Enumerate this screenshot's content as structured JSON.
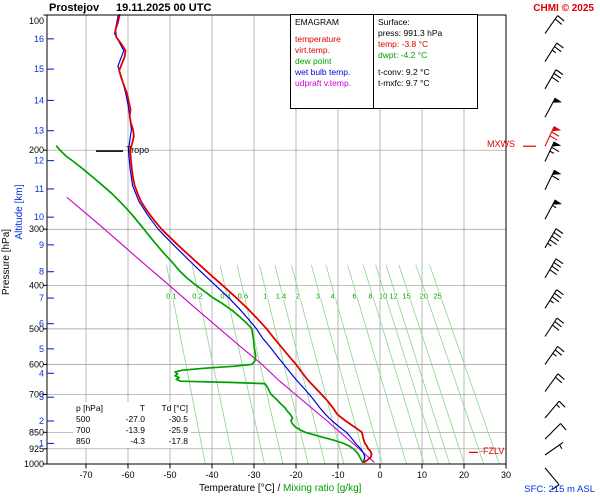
{
  "header": {
    "station": "Prostejov",
    "datetime": "19.11.2025 00 UTC",
    "copyright": "CHMI © 2025"
  },
  "legend": {
    "title": "EMAGRAM",
    "items": [
      {
        "label": "temperature",
        "color": "#e00000"
      },
      {
        "label": "virt.temp.",
        "color": "#e00000"
      },
      {
        "label": "dew point",
        "color": "#00a000"
      },
      {
        "label": "wet bulb temp.",
        "color": "#0000e0"
      },
      {
        "label": "udpraft v.temp.",
        "color": "#cc00cc"
      }
    ]
  },
  "surface": {
    "title": "Surface:",
    "rows": [
      {
        "label": "press:",
        "value": "991.3 hPa",
        "color": "#000000",
        "gap_before": false
      },
      {
        "label": "temp:",
        "value": "-3.8 °C",
        "color": "#e00000",
        "gap_before": false
      },
      {
        "label": "dwpt:",
        "value": "-4.2 °C",
        "color": "#00a000",
        "gap_before": false
      },
      {
        "label": "t-conv:",
        "value": "9.2 °C",
        "color": "#000000",
        "gap_before": true
      },
      {
        "label": "t-mxfc:",
        "value": "9.7 °C",
        "color": "#000000",
        "gap_before": false
      }
    ]
  },
  "axes": {
    "pressure_label": "Pressure [hPa]",
    "altitude_label": "Altitude [km]",
    "temp_label": "Temperature [°C]",
    "sep": "/",
    "mixing_label": "Mixing ratio [g/kg]"
  },
  "annotations": {
    "tropo": "Tropo",
    "mxws": "MXWS",
    "fzlv": "-FZLV",
    "sfc": "SFC: 215 m ASL"
  },
  "table": {
    "headers": [
      "p [hPa]",
      "T",
      "Td [°C]"
    ],
    "rows": [
      [
        "500",
        "-27.0",
        "-30.5"
      ],
      [
        "700",
        "-13.9",
        "-25.9"
      ],
      [
        "850",
        "-4.3",
        "-17.8"
      ]
    ]
  },
  "chart_data": {
    "type": "line",
    "title": "EMAGRAM sounding, Prostejov, 19.11.2025 00 UTC",
    "x_axis": {
      "label": "Temperature [°C]",
      "ticks": [
        -70,
        -60,
        -50,
        -40,
        -30,
        -20,
        -10,
        0,
        10,
        20,
        30
      ],
      "range": [
        -79,
        30
      ]
    },
    "y_axis": {
      "label": "Pressure [hPa]",
      "scale": "log",
      "range": [
        100,
        1000
      ],
      "ticks": [
        100,
        200,
        300,
        400,
        500,
        600,
        700,
        850,
        925,
        1000
      ],
      "grid": [
        200,
        300,
        400,
        500,
        600,
        700,
        850,
        925
      ]
    },
    "altitude_axis": {
      "label": "Altitude [km]",
      "ticks": [
        {
          "km": 1,
          "p": 900
        },
        {
          "km": 2,
          "p": 802
        },
        {
          "km": 3,
          "p": 710
        },
        {
          "km": 4,
          "p": 628
        },
        {
          "km": 5,
          "p": 554
        },
        {
          "km": 6,
          "p": 487
        },
        {
          "km": 7,
          "p": 427
        },
        {
          "km": 8,
          "p": 373
        },
        {
          "km": 9,
          "p": 325
        },
        {
          "km": 10,
          "p": 282
        },
        {
          "km": 11,
          "p": 244
        },
        {
          "km": 12,
          "p": 211
        },
        {
          "km": 13,
          "p": 181
        },
        {
          "km": 14,
          "p": 155
        },
        {
          "km": 15,
          "p": 132
        },
        {
          "km": 16,
          "p": 113
        }
      ]
    },
    "series": [
      {
        "name": "udpraft v.temp.",
        "color": "#cc00cc",
        "width": 1.1,
        "points": [
          [
            991,
            -1.4
          ],
          [
            950,
            -3.6
          ],
          [
            900,
            -6.4
          ],
          [
            850,
            -9.5
          ],
          [
            800,
            -12.7
          ],
          [
            750,
            -16.3
          ],
          [
            700,
            -20.1
          ],
          [
            650,
            -24.2
          ],
          [
            600,
            -28.1
          ],
          [
            550,
            -33.0
          ],
          [
            500,
            -38.2
          ],
          [
            450,
            -43.9
          ],
          [
            400,
            -50.2
          ],
          [
            350,
            -57.4
          ],
          [
            300,
            -65.6
          ],
          [
            275,
            -70.3
          ],
          [
            255,
            -74.5
          ]
        ]
      },
      {
        "name": "wet bulb temp.",
        "color": "#0000e0",
        "width": 1.2,
        "points": [
          [
            991,
            -4.0
          ],
          [
            965,
            -3.6
          ],
          [
            950,
            -3.8
          ],
          [
            925,
            -4.6
          ],
          [
            900,
            -5.8
          ],
          [
            875,
            -6.8
          ],
          [
            850,
            -8.0
          ],
          [
            825,
            -9.8
          ],
          [
            800,
            -11.5
          ],
          [
            775,
            -13.0
          ],
          [
            750,
            -14.3
          ],
          [
            725,
            -15.5
          ],
          [
            700,
            -16.8
          ],
          [
            675,
            -18.3
          ],
          [
            650,
            -19.9
          ],
          [
            625,
            -21.4
          ],
          [
            600,
            -22.9
          ],
          [
            575,
            -24.5
          ],
          [
            550,
            -26.1
          ],
          [
            525,
            -27.9
          ],
          [
            500,
            -29.4
          ],
          [
            475,
            -31.4
          ],
          [
            450,
            -33.6
          ],
          [
            425,
            -36.2
          ],
          [
            400,
            -39.2
          ],
          [
            375,
            -42.4
          ],
          [
            350,
            -45.7
          ],
          [
            325,
            -49.2
          ],
          [
            300,
            -52.8
          ],
          [
            280,
            -55.2
          ],
          [
            260,
            -57.4
          ],
          [
            240,
            -58.9
          ],
          [
            220,
            -59.5
          ],
          [
            200,
            -59.9
          ],
          [
            180,
            -59.2
          ],
          [
            160,
            -59.9
          ],
          [
            150,
            -60.5
          ],
          [
            140,
            -61.3
          ],
          [
            130,
            -62.4
          ],
          [
            120,
            -61.0
          ],
          [
            110,
            -63.2
          ],
          [
            100,
            -62.3
          ]
        ]
      },
      {
        "name": "dew point",
        "color": "#00a000",
        "width": 1.7,
        "points": [
          [
            991,
            -4.2
          ],
          [
            980,
            -4.4
          ],
          [
            965,
            -4.8
          ],
          [
            950,
            -5.2
          ],
          [
            935,
            -5.8
          ],
          [
            925,
            -6.3
          ],
          [
            910,
            -7.5
          ],
          [
            900,
            -8.6
          ],
          [
            885,
            -11.0
          ],
          [
            870,
            -14.0
          ],
          [
            850,
            -17.8
          ],
          [
            840,
            -19.0
          ],
          [
            825,
            -20.3
          ],
          [
            810,
            -21.0
          ],
          [
            800,
            -21.2
          ],
          [
            790,
            -20.8
          ],
          [
            775,
            -21.4
          ],
          [
            760,
            -22.2
          ],
          [
            750,
            -22.6
          ],
          [
            735,
            -23.6
          ],
          [
            720,
            -24.5
          ],
          [
            710,
            -25.2
          ],
          [
            700,
            -25.9
          ],
          [
            690,
            -26.3
          ],
          [
            680,
            -26.6
          ],
          [
            670,
            -27.0
          ],
          [
            662,
            -27.4
          ],
          [
            658,
            -36.0
          ],
          [
            654,
            -47.5
          ],
          [
            648,
            -48.5
          ],
          [
            642,
            -47.8
          ],
          [
            636,
            -48.8
          ],
          [
            630,
            -48.2
          ],
          [
            624,
            -48.8
          ],
          [
            618,
            -47.0
          ],
          [
            612,
            -42.0
          ],
          [
            606,
            -35.0
          ],
          [
            600,
            -30.5
          ],
          [
            590,
            -29.8
          ],
          [
            575,
            -29.6
          ],
          [
            560,
            -29.8
          ],
          [
            545,
            -30.0
          ],
          [
            530,
            -30.1
          ],
          [
            515,
            -30.3
          ],
          [
            500,
            -30.5
          ],
          [
            485,
            -31.8
          ],
          [
            470,
            -33.4
          ],
          [
            455,
            -35.2
          ],
          [
            440,
            -37.4
          ],
          [
            425,
            -40.0
          ],
          [
            410,
            -42.2
          ],
          [
            400,
            -43.8
          ],
          [
            385,
            -46.0
          ],
          [
            370,
            -47.9
          ],
          [
            355,
            -49.5
          ],
          [
            340,
            -51.4
          ],
          [
            325,
            -53.2
          ],
          [
            310,
            -55.0
          ],
          [
            300,
            -56.2
          ],
          [
            290,
            -57.5
          ],
          [
            280,
            -58.8
          ],
          [
            270,
            -60.3
          ],
          [
            260,
            -62.0
          ],
          [
            250,
            -63.8
          ],
          [
            240,
            -66.0
          ],
          [
            230,
            -68.3
          ],
          [
            220,
            -70.8
          ],
          [
            212,
            -73.0
          ],
          [
            206,
            -74.8
          ],
          [
            200,
            -76.2
          ],
          [
            196,
            -77.0
          ]
        ]
      },
      {
        "name": "temperature",
        "color": "#e00000",
        "width": 1.8,
        "points": [
          [
            991,
            -3.8
          ],
          [
            980,
            -3.0
          ],
          [
            965,
            -2.2
          ],
          [
            950,
            -2.0
          ],
          [
            935,
            -2.3
          ],
          [
            925,
            -2.8
          ],
          [
            910,
            -3.2
          ],
          [
            900,
            -3.6
          ],
          [
            875,
            -4.0
          ],
          [
            850,
            -4.3
          ],
          [
            830,
            -5.8
          ],
          [
            800,
            -8.3
          ],
          [
            775,
            -10.2
          ],
          [
            750,
            -11.2
          ],
          [
            725,
            -12.4
          ],
          [
            700,
            -13.9
          ],
          [
            675,
            -15.5
          ],
          [
            650,
            -17.2
          ],
          [
            625,
            -18.6
          ],
          [
            600,
            -20.0
          ],
          [
            575,
            -21.7
          ],
          [
            550,
            -23.4
          ],
          [
            525,
            -25.2
          ],
          [
            500,
            -27.0
          ],
          [
            475,
            -29.2
          ],
          [
            450,
            -31.6
          ],
          [
            425,
            -34.4
          ],
          [
            400,
            -37.5
          ],
          [
            375,
            -40.9
          ],
          [
            350,
            -44.4
          ],
          [
            325,
            -48.2
          ],
          [
            300,
            -52.0
          ],
          [
            290,
            -53.3
          ],
          [
            280,
            -54.6
          ],
          [
            270,
            -55.8
          ],
          [
            260,
            -56.9
          ],
          [
            250,
            -57.7
          ],
          [
            240,
            -58.4
          ],
          [
            230,
            -58.8
          ],
          [
            220,
            -59.1
          ],
          [
            210,
            -59.3
          ],
          [
            200,
            -59.5
          ],
          [
            193,
            -59.0
          ],
          [
            186,
            -58.6
          ],
          [
            180,
            -58.8
          ],
          [
            174,
            -59.3
          ],
          [
            168,
            -59.6
          ],
          [
            162,
            -59.4
          ],
          [
            156,
            -59.8
          ],
          [
            150,
            -60.2
          ],
          [
            144,
            -60.9
          ],
          [
            138,
            -61.6
          ],
          [
            133,
            -62.1
          ],
          [
            128,
            -61.4
          ],
          [
            124,
            -60.8
          ],
          [
            120,
            -60.6
          ],
          [
            116,
            -61.6
          ],
          [
            112,
            -62.8
          ],
          [
            108,
            -63.0
          ],
          [
            104,
            -62.4
          ],
          [
            100,
            -62.0
          ]
        ]
      }
    ],
    "mixing_ratio_lines": {
      "color": "#8fd48f",
      "label_color": "#00a000",
      "values": [
        {
          "r": "0.1",
          "t400": -49.9,
          "t1000": -41.6
        },
        {
          "r": "0.2",
          "t400": -43.7,
          "t1000": -34.8
        },
        {
          "r": "0.4",
          "t400": -37.0,
          "t1000": -27.5
        },
        {
          "r": "0.6",
          "t400": -32.9,
          "t1000": -23.1
        },
        {
          "r": "1",
          "t400": -27.5,
          "t1000": -17.1
        },
        {
          "r": "1.4",
          "t400": -23.8,
          "t1000": -13.1
        },
        {
          "r": "2",
          "t400": -19.8,
          "t1000": -8.6
        },
        {
          "r": "3",
          "t400": -15.0,
          "t1000": -3.3
        },
        {
          "r": "4",
          "t400": -11.5,
          "t1000": 0.6
        },
        {
          "r": "6",
          "t400": -6.3,
          "t1000": 6.3
        },
        {
          "r": "8",
          "t400": -2.5,
          "t1000": 10.5
        },
        {
          "r": "10",
          "t400": 0.5,
          "t1000": 13.9
        },
        {
          "r": "12",
          "t400": 3.0,
          "t1000": 16.6
        },
        {
          "r": "15",
          "t400": 6.1,
          "t1000": 20.1
        },
        {
          "r": "20",
          "t400": 10.2,
          "t1000": 24.7
        },
        {
          "r": "25",
          "t400": 13.5,
          "t1000": 28.4
        }
      ]
    },
    "wind_barbs": {
      "x": 545,
      "color": "#000000",
      "levels": [
        {
          "p": 110,
          "angle": 35,
          "flags": 0,
          "fulls": 2,
          "halves": 0
        },
        {
          "p": 127,
          "angle": 32,
          "flags": 0,
          "fulls": 2,
          "halves": 1
        },
        {
          "p": 146,
          "angle": 30,
          "flags": 0,
          "fulls": 3,
          "halves": 0
        },
        {
          "p": 169,
          "angle": 28,
          "flags": 1,
          "fulls": 0,
          "halves": 0
        },
        {
          "p": 196,
          "angle": 25,
          "flags": 1,
          "fulls": 2,
          "halves": 0,
          "color": "#e00000"
        },
        {
          "p": 212,
          "angle": 25,
          "flags": 1,
          "fulls": 1,
          "halves": 1
        },
        {
          "p": 245,
          "angle": 26,
          "flags": 1,
          "fulls": 1,
          "halves": 0
        },
        {
          "p": 285,
          "angle": 28,
          "flags": 1,
          "fulls": 0,
          "halves": 1
        },
        {
          "p": 330,
          "angle": 30,
          "flags": 0,
          "fulls": 4,
          "halves": 1
        },
        {
          "p": 385,
          "angle": 30,
          "flags": 0,
          "fulls": 4,
          "halves": 0
        },
        {
          "p": 450,
          "angle": 32,
          "flags": 0,
          "fulls": 3,
          "halves": 1
        },
        {
          "p": 520,
          "angle": 33,
          "flags": 0,
          "fulls": 3,
          "halves": 0
        },
        {
          "p": 600,
          "angle": 35,
          "flags": 0,
          "fulls": 2,
          "halves": 1
        },
        {
          "p": 690,
          "angle": 36,
          "flags": 0,
          "fulls": 2,
          "halves": 0
        },
        {
          "p": 790,
          "angle": 40,
          "flags": 0,
          "fulls": 1,
          "halves": 1
        },
        {
          "p": 880,
          "angle": 45,
          "flags": 0,
          "fulls": 1,
          "halves": 0
        },
        {
          "p": 955,
          "angle": 55,
          "flags": 0,
          "fulls": 0,
          "halves": 1
        },
        {
          "p": 1020,
          "angle": 140,
          "flags": 0,
          "fulls": 1,
          "halves": 0
        }
      ]
    },
    "tropopause": {
      "p": 201
    },
    "mxws": {
      "p": 197
    },
    "fzlv": {
      "p": 942
    }
  }
}
